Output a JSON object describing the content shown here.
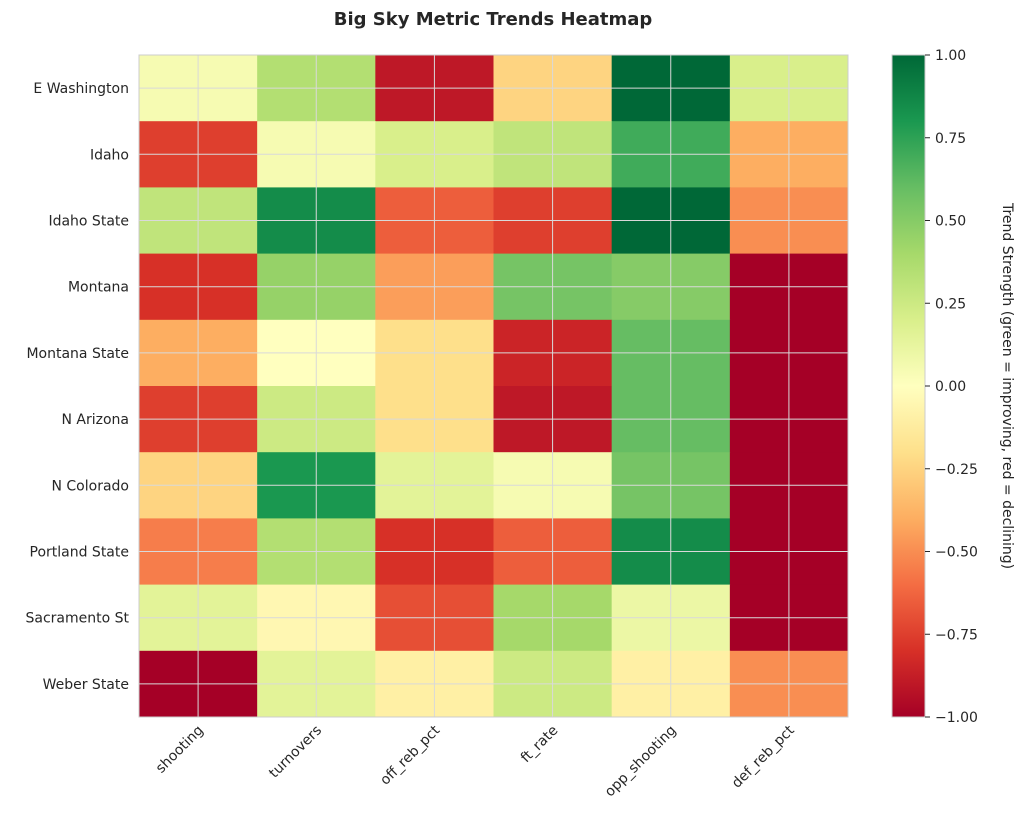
{
  "chart_data": {
    "type": "heatmap",
    "title": "Big Sky Metric Trends Heatmap",
    "rows": [
      "E Washington",
      "Idaho",
      "Idaho State",
      "Montana",
      "Montana State",
      "N Arizona",
      "N Colorado",
      "Portland State",
      "Sacramento St",
      "Weber State"
    ],
    "columns": [
      "shooting",
      "turnovers",
      "off_reb_pct",
      "ft_rate",
      "opp_shooting",
      "def_reb_pct"
    ],
    "values": [
      [
        0.05,
        0.35,
        -0.9,
        -0.25,
        1.0,
        0.2
      ],
      [
        -0.75,
        0.05,
        0.2,
        0.3,
        0.7,
        -0.4
      ],
      [
        0.3,
        0.85,
        -0.65,
        -0.75,
        1.0,
        -0.5
      ],
      [
        -0.8,
        0.45,
        -0.45,
        0.55,
        0.5,
        -1.0
      ],
      [
        -0.4,
        0.0,
        -0.2,
        -0.85,
        0.6,
        -1.0
      ],
      [
        -0.75,
        0.25,
        -0.2,
        -0.9,
        0.6,
        -1.0
      ],
      [
        -0.25,
        0.8,
        0.15,
        0.05,
        0.55,
        -1.0
      ],
      [
        -0.55,
        0.35,
        -0.8,
        -0.65,
        0.85,
        -1.0
      ],
      [
        0.15,
        -0.05,
        -0.7,
        0.4,
        0.1,
        -1.0
      ],
      [
        -1.0,
        0.15,
        -0.1,
        0.25,
        -0.1,
        -0.5
      ]
    ],
    "colorbar": {
      "label": "Trend Strength (green = improving, red = declining)",
      "min": -1.0,
      "max": 1.0,
      "ticks": [
        "1.00",
        "0.75",
        "0.50",
        "0.25",
        "0.00",
        "−0.25",
        "−0.50",
        "−0.75",
        "−1.00"
      ],
      "colormap": "RdYlGn"
    },
    "grid": true
  }
}
